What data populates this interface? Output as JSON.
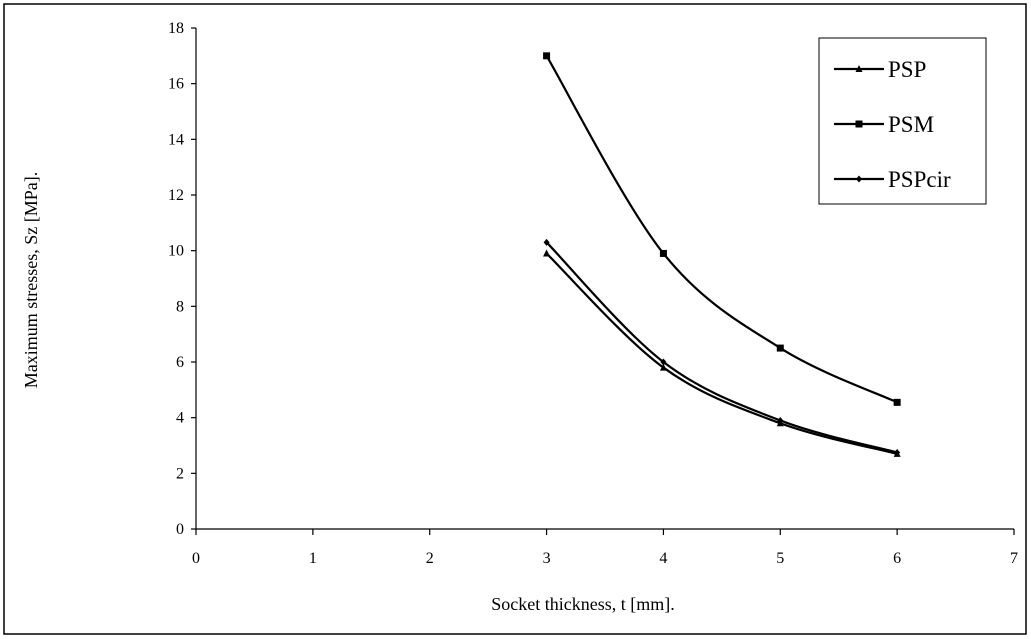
{
  "chart_data": {
    "type": "line",
    "title": "",
    "xlabel": "Socket thickness, t [mm].",
    "ylabel": "Maximum stresses, Sz [MPa].",
    "xlim": [
      0,
      7
    ],
    "ylim": [
      0,
      18
    ],
    "x_ticks": [
      0,
      1,
      2,
      3,
      4,
      5,
      6,
      7
    ],
    "y_ticks": [
      0,
      2,
      4,
      6,
      8,
      10,
      12,
      14,
      16,
      18
    ],
    "grid": false,
    "legend_position": "top-right",
    "x": [
      3,
      4,
      5,
      6
    ],
    "series": [
      {
        "name": "PSP",
        "marker": "triangle",
        "values": [
          9.9,
          5.8,
          3.8,
          2.7
        ]
      },
      {
        "name": "PSM",
        "marker": "square",
        "values": [
          17.0,
          9.9,
          6.5,
          4.55
        ]
      },
      {
        "name": "PSPcir",
        "marker": "diamond",
        "values": [
          10.3,
          6.0,
          3.9,
          2.75
        ]
      }
    ]
  }
}
